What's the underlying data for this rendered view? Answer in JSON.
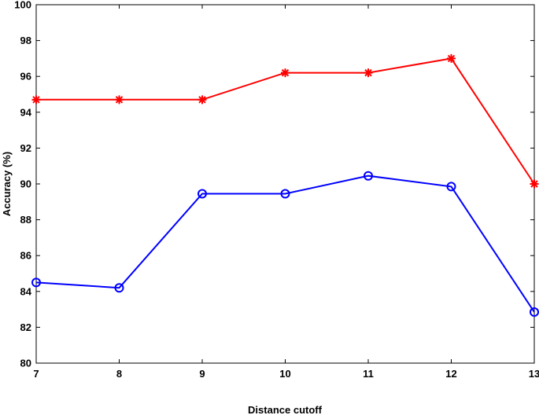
{
  "chart_data": {
    "type": "line",
    "title": "",
    "xlabel": "Distance cutoff",
    "ylabel": "Accuracy (%)",
    "x": [
      7,
      8,
      9,
      10,
      11,
      12,
      13
    ],
    "xlim": [
      7,
      13
    ],
    "ylim": [
      80,
      100
    ],
    "xticks": [
      7,
      8,
      9,
      10,
      11,
      12,
      13
    ],
    "yticks": [
      80,
      82,
      84,
      86,
      88,
      90,
      92,
      94,
      96,
      98,
      100
    ],
    "grid": false,
    "legend": "none",
    "series": [
      {
        "color": "#ff0000",
        "marker": "star",
        "values": [
          94.7,
          94.7,
          94.7,
          96.2,
          96.2,
          97.0,
          90.0
        ]
      },
      {
        "color": "#0000ff",
        "marker": "circle",
        "values": [
          84.5,
          84.2,
          89.45,
          89.45,
          90.45,
          89.85,
          82.85
        ]
      }
    ]
  }
}
